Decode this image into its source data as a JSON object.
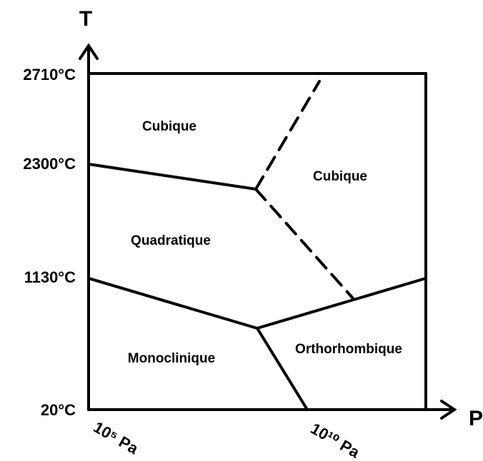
{
  "axes": {
    "y_label": "T",
    "x_label": "P",
    "y_ticks": [
      "2710°C",
      "2300°C",
      "1130°C",
      "20°C"
    ],
    "x_ticks": [
      "10⁵ Pa",
      "10¹⁰ Pa"
    ]
  },
  "regions": [
    "Cubique",
    "Cubique",
    "Quadratique",
    "Monoclinique",
    "Orthorhombique"
  ]
}
